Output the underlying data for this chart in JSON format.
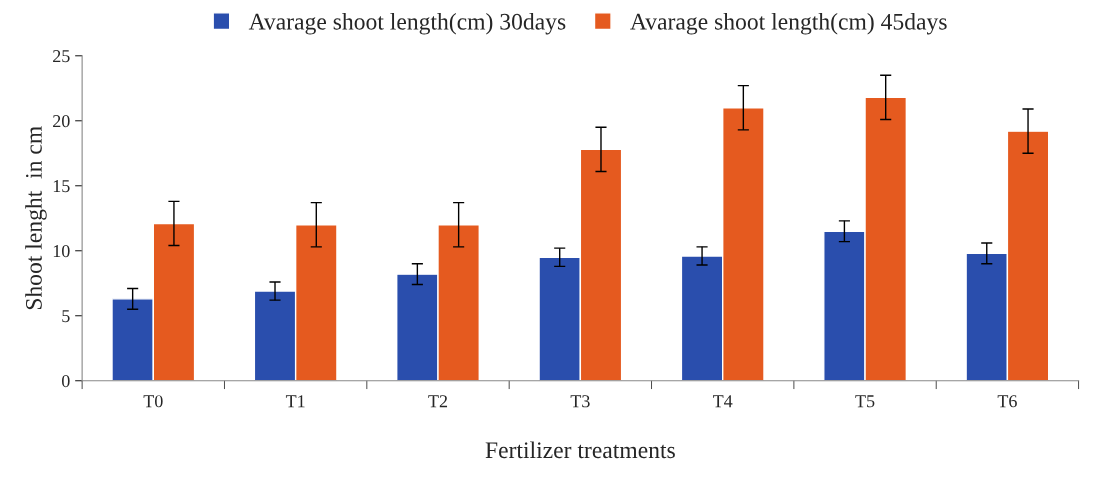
{
  "chart_data": {
    "type": "bar",
    "xlabel": "Fertilizer treatments",
    "ylabel": "Shoot lenght  in cm",
    "categories": [
      "T0",
      "T1",
      "T2",
      "T3",
      "T4",
      "T5",
      "T6"
    ],
    "series": [
      {
        "name": "Avarage shoot length(cm) 30days",
        "color": "#2a4ead",
        "values": [
          6.3,
          6.9,
          8.2,
          9.5,
          9.6,
          11.5,
          9.8
        ],
        "errors": [
          0.8,
          0.7,
          0.8,
          0.7,
          0.7,
          0.8,
          0.8
        ]
      },
      {
        "name": "Avarage shoot length(cm) 45days",
        "color": "#e55a1f",
        "values": [
          12.1,
          12.0,
          12.0,
          17.8,
          21.0,
          21.8,
          19.2
        ],
        "errors": [
          1.7,
          1.7,
          1.7,
          1.7,
          1.7,
          1.7,
          1.7
        ]
      }
    ],
    "ylim": [
      0,
      25
    ],
    "yticks": [
      0,
      5,
      10,
      15,
      20,
      25
    ],
    "grid": false,
    "legend": "top"
  }
}
